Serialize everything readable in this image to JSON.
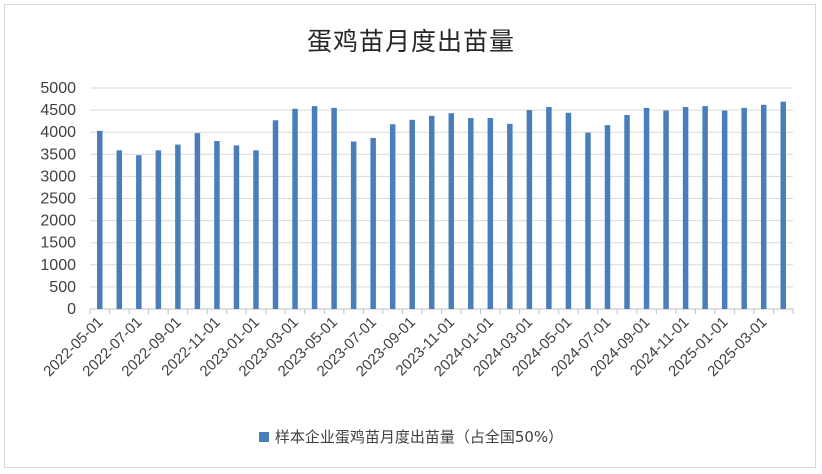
{
  "chart_data": {
    "type": "bar",
    "title": "蛋鸡苗月度出苗量",
    "xlabel": "",
    "ylabel": "",
    "ylim": [
      0,
      5000
    ],
    "yticks": [
      0,
      500,
      1000,
      1500,
      2000,
      2500,
      3000,
      3500,
      4000,
      4500,
      5000
    ],
    "grid": true,
    "legend_position": "bottom",
    "color": "#4a7ebb",
    "x_tick_labels": [
      "2022-05-01",
      "2022-07-01",
      "2022-09-01",
      "2022-11-01",
      "2023-01-01",
      "2023-03-01",
      "2023-05-01",
      "2023-07-01",
      "2023-09-01",
      "2023-11-01",
      "2024-01-01",
      "2024-03-01",
      "2024-05-01",
      "2024-07-01",
      "2024-09-01",
      "2024-11-01",
      "2025-01-01",
      "2025-03-01"
    ],
    "categories": [
      "2022-05",
      "2022-06",
      "2022-07",
      "2022-08",
      "2022-09",
      "2022-10",
      "2022-11",
      "2022-12",
      "2023-01",
      "2023-02",
      "2023-03",
      "2023-04",
      "2023-05",
      "2023-06",
      "2023-07",
      "2023-08",
      "2023-09",
      "2023-10",
      "2023-11",
      "2023-12",
      "2024-01",
      "2024-02",
      "2024-03",
      "2024-04",
      "2024-05",
      "2024-06",
      "2024-07",
      "2024-08",
      "2024-09",
      "2024-10",
      "2024-11",
      "2024-12",
      "2025-01",
      "2025-02",
      "2025-03",
      "2025-04"
    ],
    "series": [
      {
        "name": "样本企业蛋鸡苗月度出苗量（占全国50%）",
        "values": [
          4030,
          3590,
          3480,
          3590,
          3720,
          3980,
          3800,
          3700,
          3590,
          4270,
          4530,
          4590,
          4550,
          3790,
          3870,
          4180,
          4280,
          4370,
          4430,
          4320,
          4320,
          4190,
          4500,
          4570,
          4440,
          3990,
          4160,
          4390,
          4550,
          4490,
          4570,
          4590,
          4490,
          4550,
          4620,
          4690
        ]
      }
    ]
  }
}
